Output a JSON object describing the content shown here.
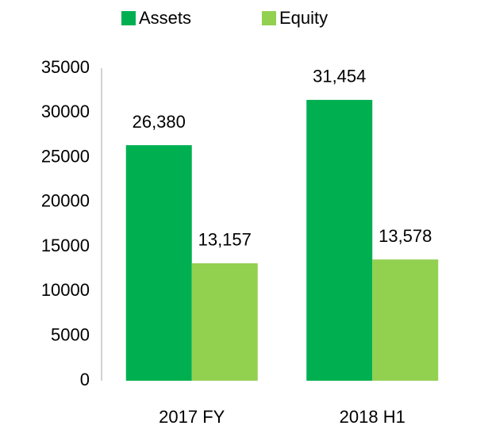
{
  "chart_data": {
    "type": "bar",
    "categories": [
      "2017 FY",
      "2018 H1"
    ],
    "series": [
      {
        "name": "Assets",
        "color": "#00b050",
        "values": [
          26380,
          31454
        ],
        "value_labels": [
          "26,380",
          "31,454"
        ]
      },
      {
        "name": "Equity",
        "color": "#92d050",
        "values": [
          13157,
          13578
        ],
        "value_labels": [
          "13,157",
          "13,578"
        ]
      }
    ],
    "ylim": [
      0,
      35000
    ],
    "yticks": [
      0,
      5000,
      10000,
      15000,
      20000,
      25000,
      30000,
      35000
    ],
    "grid": false,
    "legend": "top"
  }
}
